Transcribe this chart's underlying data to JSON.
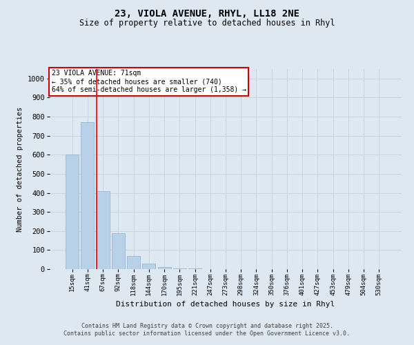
{
  "title1": "23, VIOLA AVENUE, RHYL, LL18 2NE",
  "title2": "Size of property relative to detached houses in Rhyl",
  "xlabel": "Distribution of detached houses by size in Rhyl",
  "ylabel": "Number of detached properties",
  "bins": [
    "15sqm",
    "41sqm",
    "67sqm",
    "92sqm",
    "118sqm",
    "144sqm",
    "170sqm",
    "195sqm",
    "221sqm",
    "247sqm",
    "273sqm",
    "298sqm",
    "324sqm",
    "350sqm",
    "376sqm",
    "401sqm",
    "427sqm",
    "453sqm",
    "479sqm",
    "504sqm",
    "530sqm"
  ],
  "values": [
    600,
    770,
    410,
    190,
    70,
    30,
    10,
    5,
    5,
    0,
    0,
    0,
    0,
    0,
    0,
    0,
    0,
    0,
    0,
    0,
    0
  ],
  "bar_color": "#b8d0e8",
  "bar_edge_color": "#8ab0d0",
  "grid_color": "#c8d4e0",
  "bg_color": "#dde8f0",
  "red_line_index": 2,
  "annotation_text": "23 VIOLA AVENUE: 71sqm\n← 35% of detached houses are smaller (740)\n64% of semi-detached houses are larger (1,358) →",
  "annotation_box_color": "#ffffff",
  "annotation_box_edge": "#cc0000",
  "ylim": [
    0,
    1050
  ],
  "yticks": [
    0,
    100,
    200,
    300,
    400,
    500,
    600,
    700,
    800,
    900,
    1000
  ],
  "footer1": "Contains HM Land Registry data © Crown copyright and database right 2025.",
  "footer2": "Contains public sector information licensed under the Open Government Licence v3.0."
}
